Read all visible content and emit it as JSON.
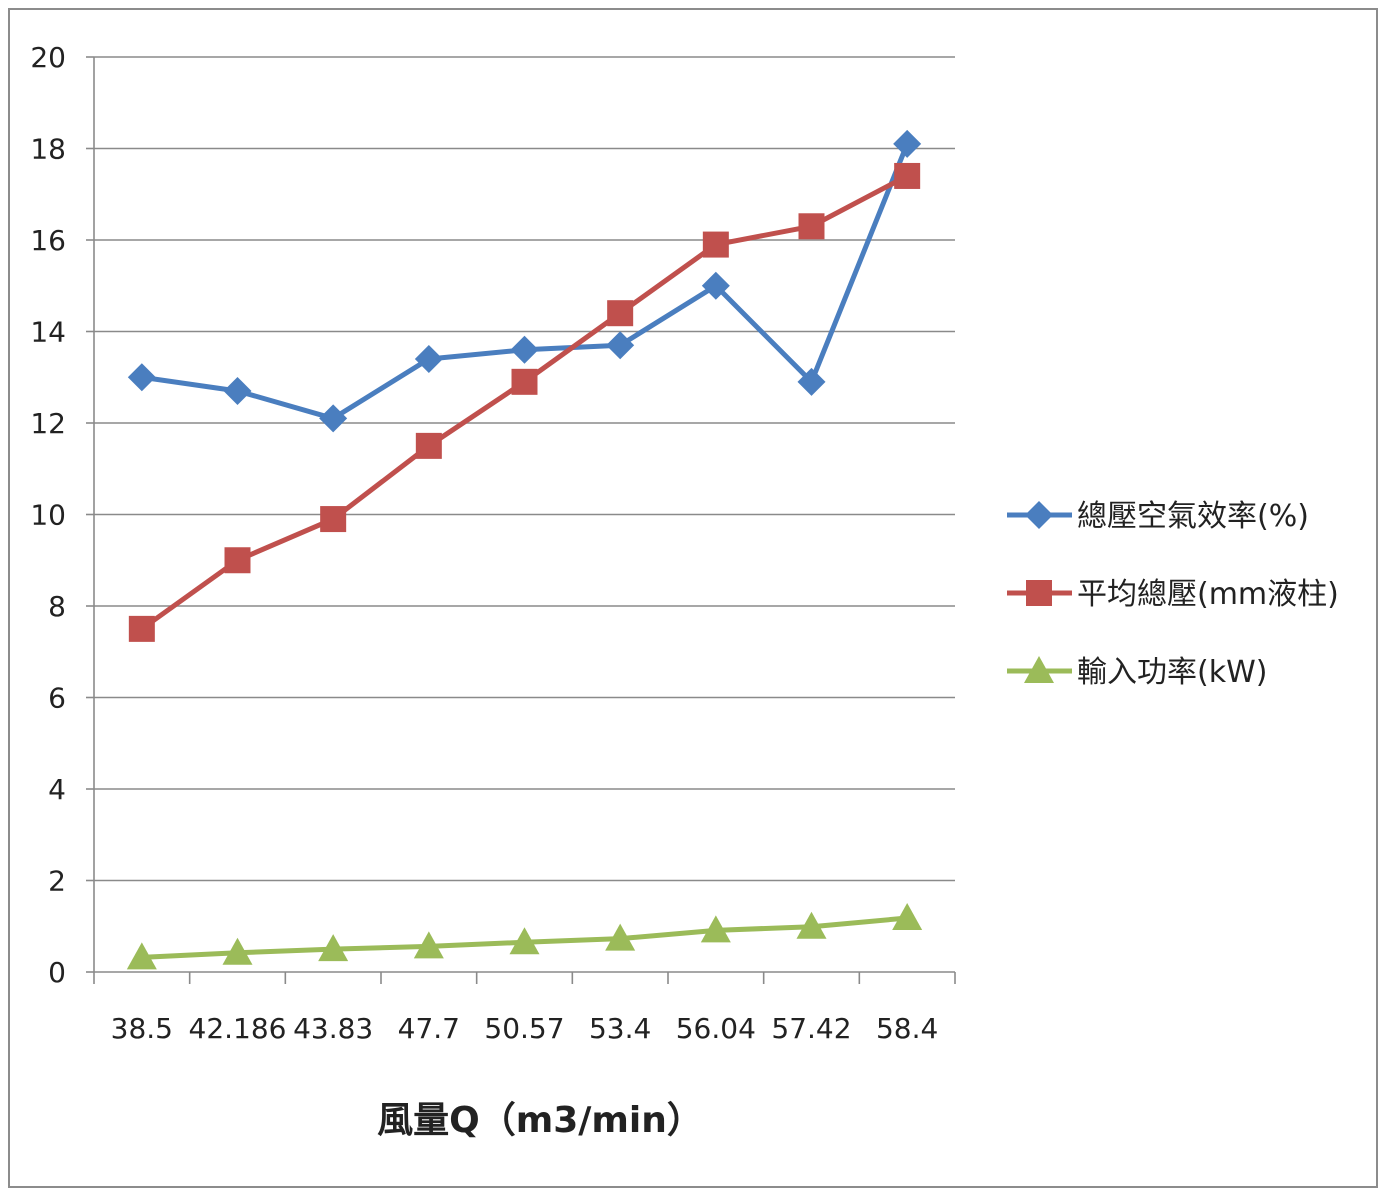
{
  "chart_data": {
    "type": "line",
    "title": "",
    "xlabel": "風量Q（m3/min）",
    "ylabel": "",
    "categories": [
      "38.5",
      "42.186",
      "43.83",
      "47.7",
      "50.57",
      "53.4",
      "56.04",
      "57.42",
      "58.4"
    ],
    "ylim": [
      0,
      20
    ],
    "yticks": [
      0,
      2,
      4,
      6,
      8,
      10,
      12,
      14,
      16,
      18,
      20
    ],
    "grid": true,
    "legend_position": "right",
    "series": [
      {
        "name": "總壓空氣效率(%)",
        "color": "#4a7ebf",
        "marker": "diamond",
        "values": [
          13.0,
          12.7,
          12.1,
          13.4,
          13.6,
          13.7,
          15.0,
          12.9,
          18.1
        ]
      },
      {
        "name": "平均總壓(mm液柱)",
        "color": "#c0504d",
        "marker": "square",
        "values": [
          7.5,
          9.0,
          9.9,
          11.5,
          12.9,
          14.4,
          15.9,
          16.3,
          17.4
        ]
      },
      {
        "name": "輸入功率(kW)",
        "color": "#9bbb59",
        "marker": "triangle",
        "values": [
          0.32,
          0.42,
          0.5,
          0.56,
          0.65,
          0.73,
          0.91,
          0.99,
          1.18
        ]
      }
    ]
  }
}
